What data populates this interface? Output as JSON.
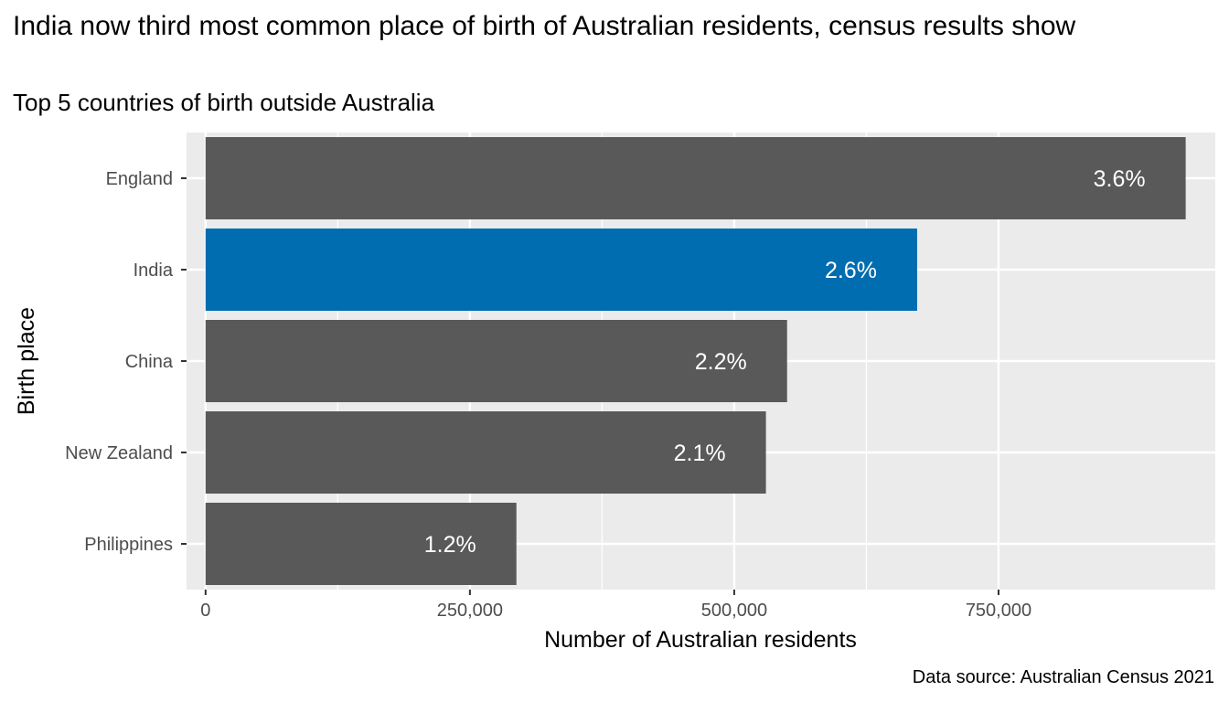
{
  "title": "India now third most common place of birth of Australian residents, census results show",
  "subtitle": "Top 5 countries of birth outside Australia",
  "caption": "Data source: Australian Census 2021",
  "colors": {
    "panel_background": "#ebebeb",
    "grid": "#ffffff",
    "bar_default": "#595959",
    "bar_highlight": "#006db0",
    "bar_label": "#ffffff"
  },
  "chart_data": {
    "type": "bar",
    "orientation": "horizontal",
    "xlabel": "Number of Australian residents",
    "ylabel": "Birth place",
    "xlim": [
      -18000,
      955000
    ],
    "x_ticks": [
      0,
      250000,
      500000,
      750000
    ],
    "x_tick_labels": [
      "0",
      "250,000",
      "500,000",
      "750,000"
    ],
    "grid": true,
    "categories": [
      "England",
      "India",
      "China",
      "New Zealand",
      "Philippines"
    ],
    "values": [
      927000,
      673000,
      550000,
      530000,
      294000
    ],
    "data_labels": [
      "3.6%",
      "2.6%",
      "2.2%",
      "2.1%",
      "1.2%"
    ],
    "highlight": "India"
  }
}
